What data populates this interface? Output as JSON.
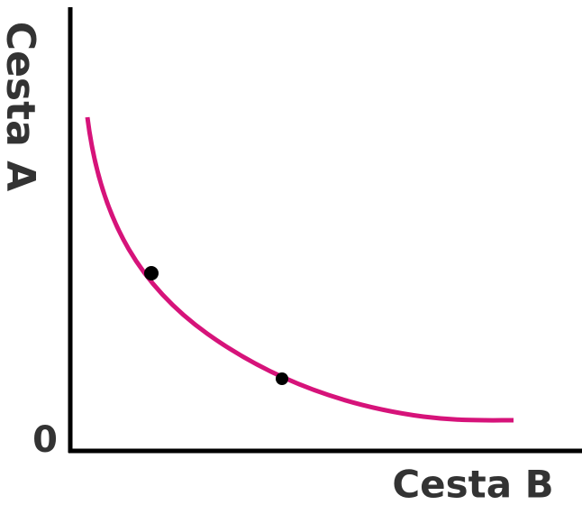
{
  "axes": {
    "y_label": "Cesta A",
    "x_label": "Cesta B",
    "origin": "0"
  }
}
